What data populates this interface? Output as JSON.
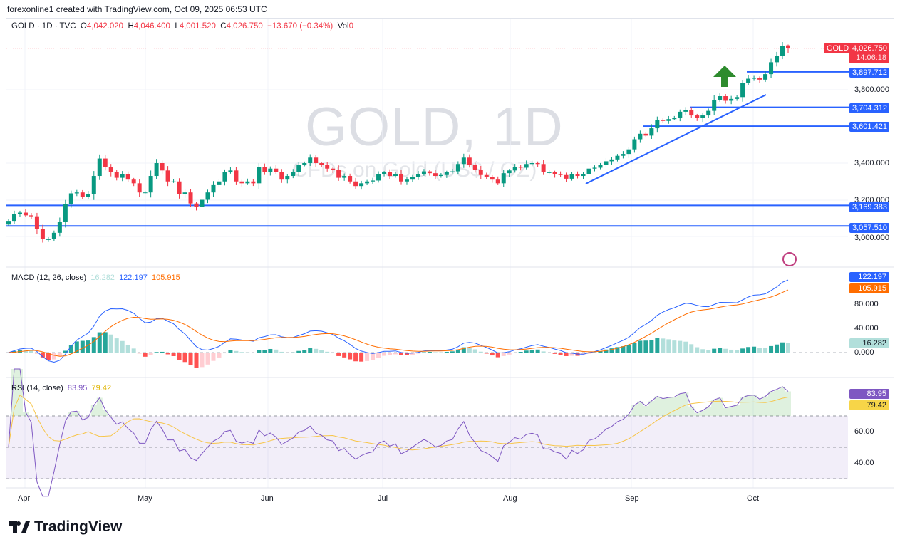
{
  "credit": "forexonline1 created with TradingView.com, Oct 09, 2025 06:53 UTC",
  "legend": {
    "symbol": "GOLD · 1D · TVC",
    "o_label": "O",
    "o": "4,042.020",
    "h_label": "H",
    "h": "4,046.400",
    "l_label": "L",
    "l": "4,001.520",
    "c_label": "C",
    "c": "4,026.750",
    "change": "−13.670 (−0.34%)",
    "vol_label": "Vol",
    "vol": "0"
  },
  "watermark": {
    "title": "GOLD, 1D",
    "subtitle": "CFDs on Gold (US$ / OZ)"
  },
  "price_tag": {
    "symbol": "GOLD",
    "price": "4,026.750",
    "countdown": "14:06:18",
    "color": "#f23645"
  },
  "levels": [
    {
      "label": "3,897.712",
      "value": 3897.712,
      "from_month": "Oct"
    },
    {
      "label": "3,704.312",
      "value": 3704.312,
      "from_month": "Sep"
    },
    {
      "label": "3,601.421",
      "value": 3601.421,
      "from_month": "Sep"
    },
    {
      "label": "3,169.383",
      "value": 3169.383,
      "from_month": "Mar"
    },
    {
      "label": "3,057.510",
      "value": 3057.51,
      "from_month": "Mar"
    }
  ],
  "level_color": "#2962ff",
  "price_axis": [
    "3,800.000",
    "3,400.000",
    "3,200.000",
    "3,000.000"
  ],
  "time_axis": [
    "Apr",
    "May",
    "Jun",
    "Jul",
    "Aug",
    "Sep",
    "Oct"
  ],
  "macd": {
    "title": "MACD (12, 26, close)",
    "hist": "16.282",
    "macd": "122.197",
    "signal": "105.915",
    "axis": [
      "80.000",
      "40.000",
      "0.000"
    ]
  },
  "rsi": {
    "title": "RSI (14, close)",
    "rsi": "83.95",
    "ma": "79.42",
    "axis": [
      "60.00",
      "40.00"
    ]
  },
  "logo": "TradingView",
  "chart_data": {
    "type": "candlestick",
    "title": "GOLD, 1D",
    "ylim": [
      2950,
      4060
    ],
    "start": "Mar 28",
    "closes": [
      3085,
      3122,
      3130,
      3115,
      3110,
      3040,
      2985,
      2985,
      3020,
      3080,
      3175,
      3235,
      3240,
      3215,
      3230,
      3330,
      3425,
      3380,
      3350,
      3320,
      3340,
      3310,
      3290,
      3240,
      3240,
      3330,
      3400,
      3360,
      3300,
      3300,
      3230,
      3240,
      3180,
      3160,
      3200,
      3240,
      3280,
      3300,
      3350,
      3360,
      3300,
      3290,
      3300,
      3290,
      3380,
      3350,
      3370,
      3350,
      3310,
      3330,
      3350,
      3390,
      3400,
      3430,
      3400,
      3390,
      3370,
      3365,
      3320,
      3330,
      3300,
      3275,
      3290,
      3300,
      3305,
      3340,
      3350,
      3330,
      3340,
      3300,
      3310,
      3325,
      3340,
      3355,
      3345,
      3330,
      3335,
      3350,
      3355,
      3395,
      3430,
      3390,
      3365,
      3335,
      3325,
      3310,
      3290,
      3345,
      3360,
      3380,
      3375,
      3395,
      3400,
      3395,
      3350,
      3350,
      3340,
      3335,
      3315,
      3340,
      3330,
      3340,
      3370,
      3375,
      3390,
      3410,
      3420,
      3440,
      3450,
      3475,
      3530,
      3560,
      3550,
      3590,
      3635,
      3630,
      3640,
      3645,
      3680,
      3690,
      3660,
      3645,
      3660,
      3685,
      3745,
      3765,
      3740,
      3750,
      3760,
      3835,
      3860,
      3865,
      3855,
      3885,
      3950,
      3985,
      4040,
      4026.75
    ],
    "last_bar": {
      "open": 4042.02,
      "high": 4046.4,
      "low": 4001.52,
      "close": 4026.75
    },
    "colors": {
      "up": "#089981",
      "down": "#f23645",
      "macd": "#2962ff",
      "signal": "#ff6d00",
      "rsi": "#7e57c2",
      "rsi_ma": "#f7c548"
    }
  }
}
